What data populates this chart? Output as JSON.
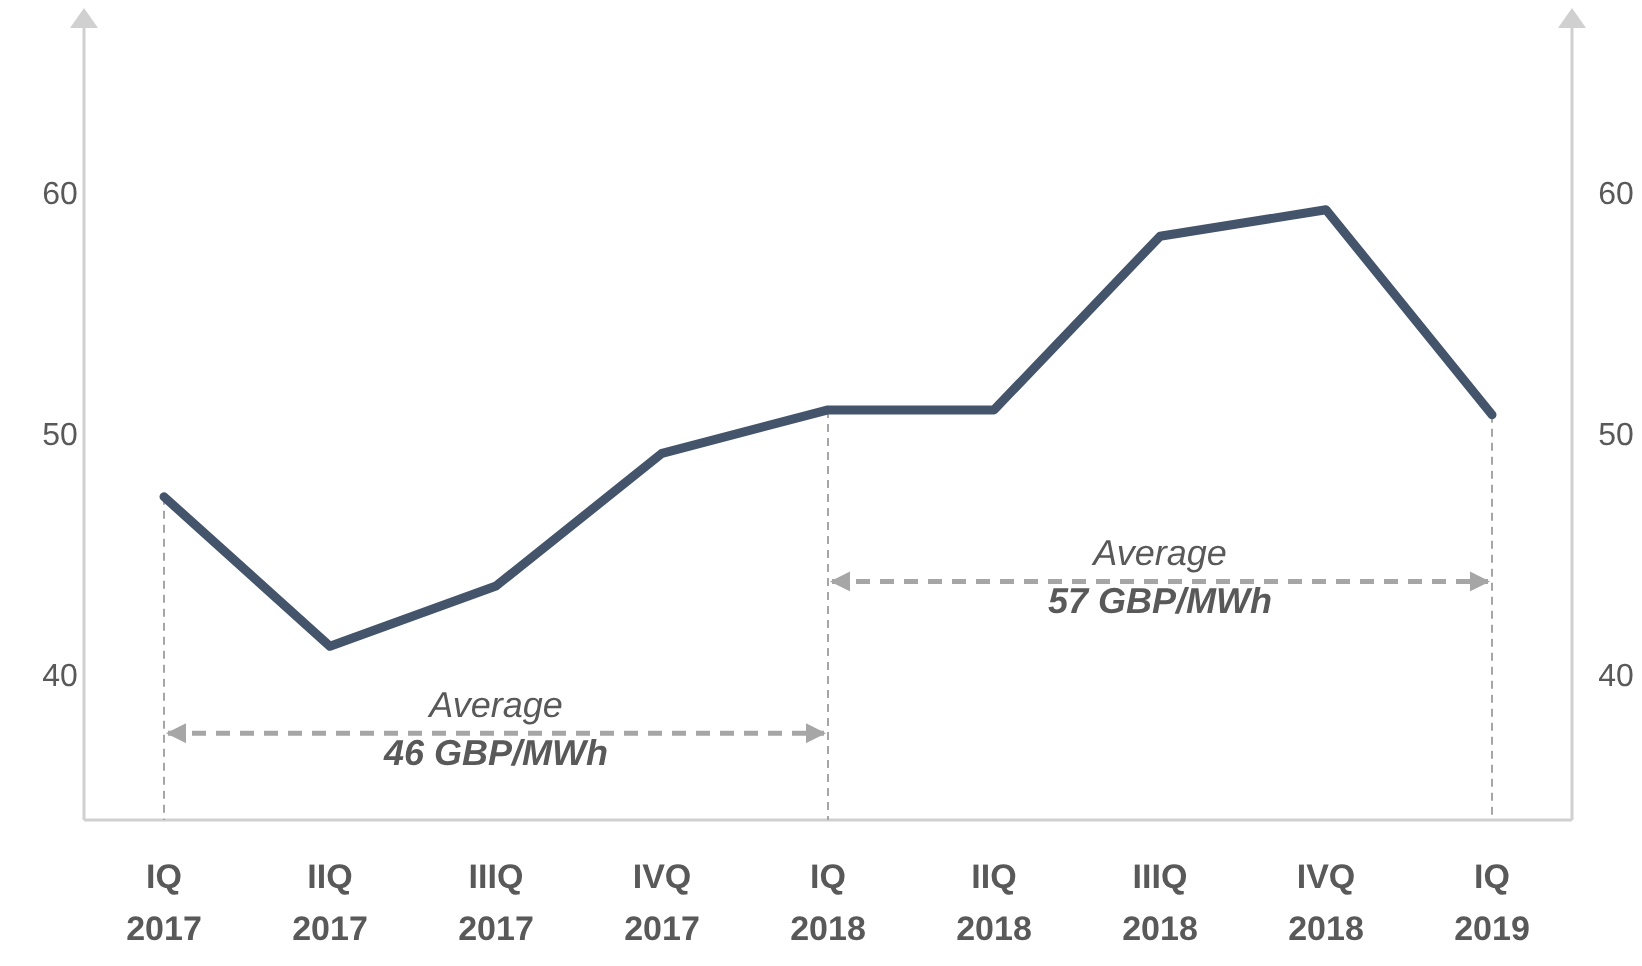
{
  "chart_data": {
    "type": "line",
    "categories": [
      "IQ 2017",
      "IIQ 2017",
      "IIIQ 2017",
      "IVQ 2017",
      "IQ 2018",
      "IIQ 2018",
      "IIIQ 2018",
      "IVQ 2018",
      "IQ 2019"
    ],
    "series": [
      {
        "color": "#44546a",
        "values": [
          47.4,
          41.2,
          43.7,
          49.2,
          51.0,
          51.0,
          58.2,
          59.3,
          50.8
        ]
      }
    ],
    "ylim": [
      34,
      67
    ],
    "yticks": [
      40,
      50,
      60
    ],
    "y2lim": [
      34,
      67
    ],
    "y2ticks": [
      40,
      50,
      60
    ],
    "annotations": [
      "Average\n46 GBP/MWh",
      "Average\n57 GBP/MWh"
    ],
    "grid": false,
    "marker": "none",
    "line_style": "solid"
  }
}
